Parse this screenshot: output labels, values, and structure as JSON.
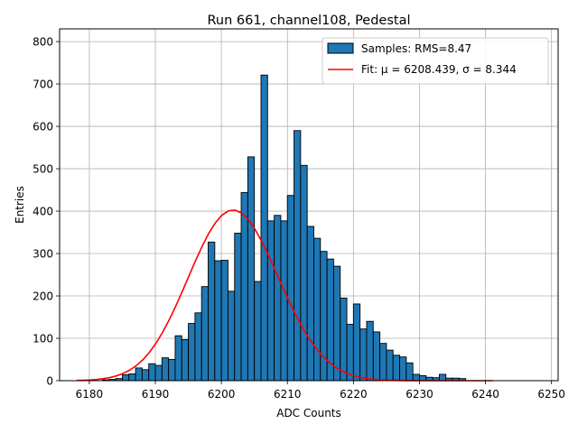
{
  "chart_data": {
    "type": "bar",
    "title": "Run 661, channel108, Pedestal",
    "xlabel": "ADC Counts",
    "ylabel": "Entries",
    "xlim": [
      6175.5,
      6251
    ],
    "ylim": [
      0,
      830
    ],
    "x_ticks": [
      6180,
      6190,
      6200,
      6210,
      6220,
      6230,
      6240,
      6250
    ],
    "y_ticks": [
      0,
      100,
      200,
      300,
      400,
      500,
      600,
      700,
      800
    ],
    "grid": true,
    "legend_position": "top-right",
    "bin_width": 1,
    "bin_starts": [
      6182,
      6183,
      6184,
      6185,
      6186,
      6187,
      6188,
      6189,
      6190,
      6191,
      6192,
      6193,
      6194,
      6195,
      6196,
      6197,
      6198,
      6199,
      6200,
      6201,
      6202,
      6203,
      6204,
      6205,
      6206,
      6207,
      6208,
      6209,
      6210,
      6211,
      6212,
      6213,
      6214,
      6215,
      6216,
      6217,
      6218,
      6219,
      6220,
      6221,
      6222,
      6223,
      6224,
      6225,
      6226,
      6227,
      6228,
      6229,
      6230,
      6231,
      6232,
      6233,
      6234,
      6235,
      6236
    ],
    "counts": [
      2,
      3,
      5,
      14,
      16,
      30,
      26,
      40,
      36,
      54,
      50,
      106,
      97,
      135,
      160,
      222,
      327,
      283,
      284,
      211,
      348,
      444,
      528,
      234,
      721,
      377,
      390,
      377,
      437,
      590,
      508,
      364,
      336,
      305,
      287,
      270,
      195,
      133,
      181,
      122,
      140,
      115,
      88,
      72,
      60,
      56,
      42,
      15,
      12,
      8,
      7,
      15,
      6,
      6,
      5
    ],
    "fit_x": [
      6178.1,
      6179.1,
      6180.1,
      6181.1,
      6182.1,
      6183.1,
      6184.1,
      6185.1,
      6186.1,
      6187.1,
      6188.1,
      6189.1,
      6190.1,
      6191.1,
      6192.1,
      6193.1,
      6194.1,
      6195.1,
      6196.1,
      6197.1,
      6198.1,
      6199.1,
      6200.1,
      6201.1,
      6202.1,
      6203.1,
      6204.1,
      6205.1,
      6206.1,
      6207.1,
      6208.1,
      6209.1,
      6210.1,
      6211.1,
      6212.1,
      6213.1,
      6214.1,
      6215.1,
      6216.1,
      6217.1,
      6218.1,
      6219.1,
      6220.1,
      6221.1,
      6222.1,
      6223.1,
      6224.1,
      6225.1,
      6226.1,
      6227.1,
      6228.1,
      6229.1,
      6230.1,
      6231.1,
      6232.1,
      6233.1,
      6234.1,
      6235.1,
      6236.1,
      6237.1,
      6238.1,
      6239.1,
      6240.1,
      6241.1
    ],
    "fit_y": [
      0.6,
      1.0,
      1.7,
      2.8,
      4.6,
      7.3,
      11.3,
      16.9,
      24.7,
      35.3,
      49.2,
      66.8,
      88.4,
      114.1,
      143.6,
      176.3,
      211.4,
      247.6,
      283.6,
      317.5,
      347.8,
      372.7,
      390.7,
      400.8,
      402.3,
      395.1,
      379.6,
      356.9,
      328.6,
      296.3,
      261.9,
      226.7,
      192.3,
      159.8,
      130.1,
      103.7,
      80.9,
      61.8,
      46.2,
      33.7,
      24.1,
      16.8,
      11.5,
      7.7,
      5.0,
      3.2,
      2.0,
      1.2,
      0.7,
      0.4,
      0.2,
      0.1,
      0.1,
      0.0,
      0.0,
      0.0,
      0.0,
      0.0,
      0.0,
      0.0,
      0.0,
      0.0,
      0.0,
      0.0
    ],
    "series": [
      {
        "name": "Samples: RMS=8.47",
        "type": "histogram",
        "color": "#1f77b4",
        "edge_color": "#000000"
      },
      {
        "name": "Fit: μ = 6208.439, σ = 8.344",
        "type": "line",
        "color": "#ff0000"
      }
    ]
  }
}
